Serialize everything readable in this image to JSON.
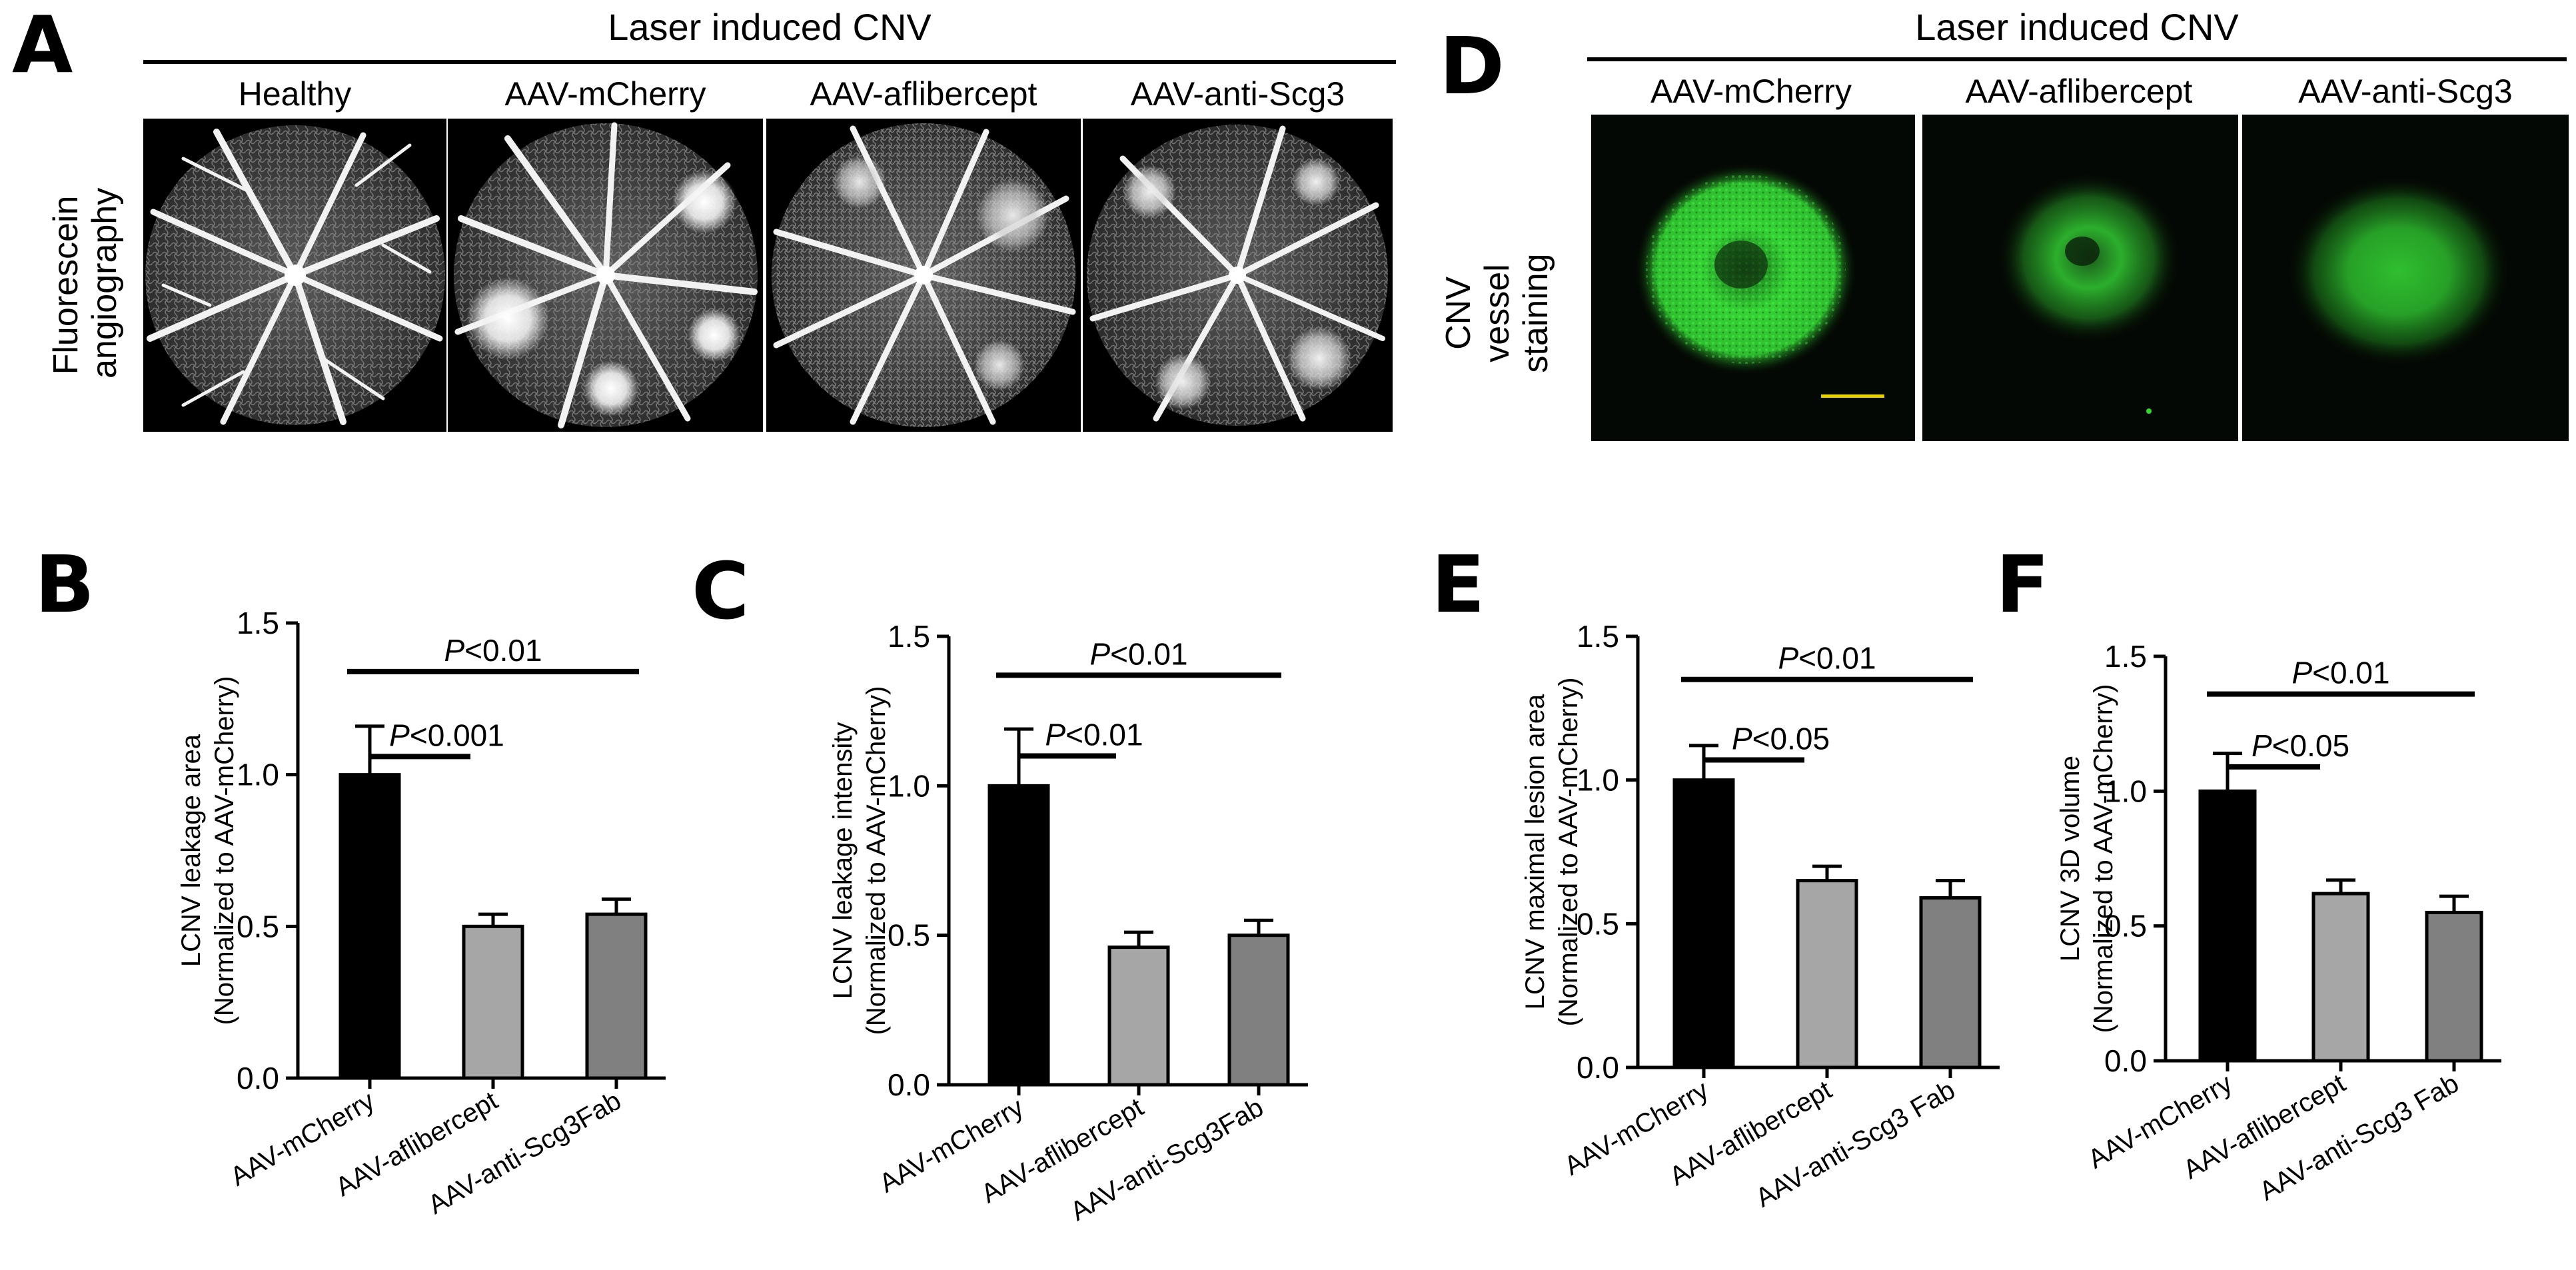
{
  "panel_a": {
    "letter": "A",
    "header": "Laser induced CNV",
    "row_label_lines": [
      "Fluorescein",
      "angiography"
    ],
    "columns": [
      "Healthy",
      "AAV-mCherry",
      "AAV-aflibercept",
      "AAV-anti-Scg3"
    ]
  },
  "panel_d": {
    "letter": "D",
    "header": "Laser induced CNV",
    "row_label_lines": [
      "CNV",
      "vessel",
      "staining"
    ],
    "columns": [
      "AAV-mCherry",
      "AAV-aflibercept",
      "AAV-anti-Scg3"
    ]
  },
  "colors": {
    "bar_black": "#000000",
    "bar_light_gray": "#a6a6a6",
    "bar_dark_gray": "#808080",
    "stain_green": "#2fd82f",
    "scale_bar": "#e8d000"
  },
  "chart_data": [
    {
      "panel": "B",
      "type": "bar",
      "categories": [
        "AAV-mCherry",
        "AAV-aflibercept",
        "AAV-anti-Scg3Fab"
      ],
      "values": [
        1.0,
        0.5,
        0.54
      ],
      "errors": [
        0.16,
        0.04,
        0.05
      ],
      "ylabel_lines": [
        "LCNV leakage area",
        "(Normalized to AAV-mCherry)"
      ],
      "ylim": [
        0,
        1.5
      ],
      "yticks": [
        "0.0",
        "0.5",
        "1.0",
        "1.5"
      ],
      "sig": [
        {
          "text_italic": "P",
          "text_rest": "<0.01",
          "from": 0,
          "to": 2,
          "y": 1.34
        },
        {
          "text_italic": "P",
          "text_rest": "<0.001",
          "from": 0,
          "to": 1,
          "y": 1.06
        }
      ]
    },
    {
      "panel": "C",
      "type": "bar",
      "categories": [
        "AAV-mCherry",
        "AAV-aflibercept",
        "AAV-anti-Scg3Fab"
      ],
      "values": [
        1.0,
        0.46,
        0.5
      ],
      "errors": [
        0.19,
        0.05,
        0.05
      ],
      "ylabel_lines": [
        "LCNV leakage intensity",
        "(Normalized to AAV-mCherry)"
      ],
      "ylim": [
        0,
        1.5
      ],
      "yticks": [
        "0.0",
        "0.5",
        "1.0",
        "1.5"
      ],
      "sig": [
        {
          "text_italic": "P",
          "text_rest": "<0.01",
          "from": 0,
          "to": 2,
          "y": 1.37
        },
        {
          "text_italic": "P",
          "text_rest": "<0.01",
          "from": 0,
          "to": 1,
          "y": 1.1
        }
      ]
    },
    {
      "panel": "E",
      "type": "bar",
      "categories": [
        "AAV-mCherry",
        "AAV-aflibercept",
        "AAV-anti-Scg3 Fab"
      ],
      "values": [
        1.0,
        0.65,
        0.59
      ],
      "errors": [
        0.12,
        0.05,
        0.06
      ],
      "ylabel_lines": [
        "LCNV maximal lesion area",
        "(Normalized to AAV-mCherry)"
      ],
      "ylim": [
        0,
        1.5
      ],
      "yticks": [
        "0.0",
        "0.5",
        "1.0",
        "1.5"
      ],
      "sig": [
        {
          "text_italic": "P",
          "text_rest": "<0.01",
          "from": 0,
          "to": 2,
          "y": 1.35
        },
        {
          "text_italic": "P",
          "text_rest": "<0.05",
          "from": 0,
          "to": 1,
          "y": 1.07
        }
      ]
    },
    {
      "panel": "F",
      "type": "bar",
      "categories": [
        "AAV-mCherry",
        "AAV-aflibercept",
        "AAV-anti-Scg3 Fab"
      ],
      "values": [
        1.0,
        0.62,
        0.55
      ],
      "errors": [
        0.14,
        0.05,
        0.06
      ],
      "ylabel_lines": [
        "LCNV 3D volume",
        "(Normalized to AAV-mCherry)"
      ],
      "ylim": [
        0,
        1.5
      ],
      "yticks": [
        "0.0",
        "0.5",
        "1.0",
        "1.5"
      ],
      "sig": [
        {
          "text_italic": "P",
          "text_rest": "<0.01",
          "from": 0,
          "to": 2,
          "y": 1.36
        },
        {
          "text_italic": "P",
          "text_rest": "<0.05",
          "from": 0,
          "to": 1,
          "y": 1.09
        }
      ]
    }
  ]
}
